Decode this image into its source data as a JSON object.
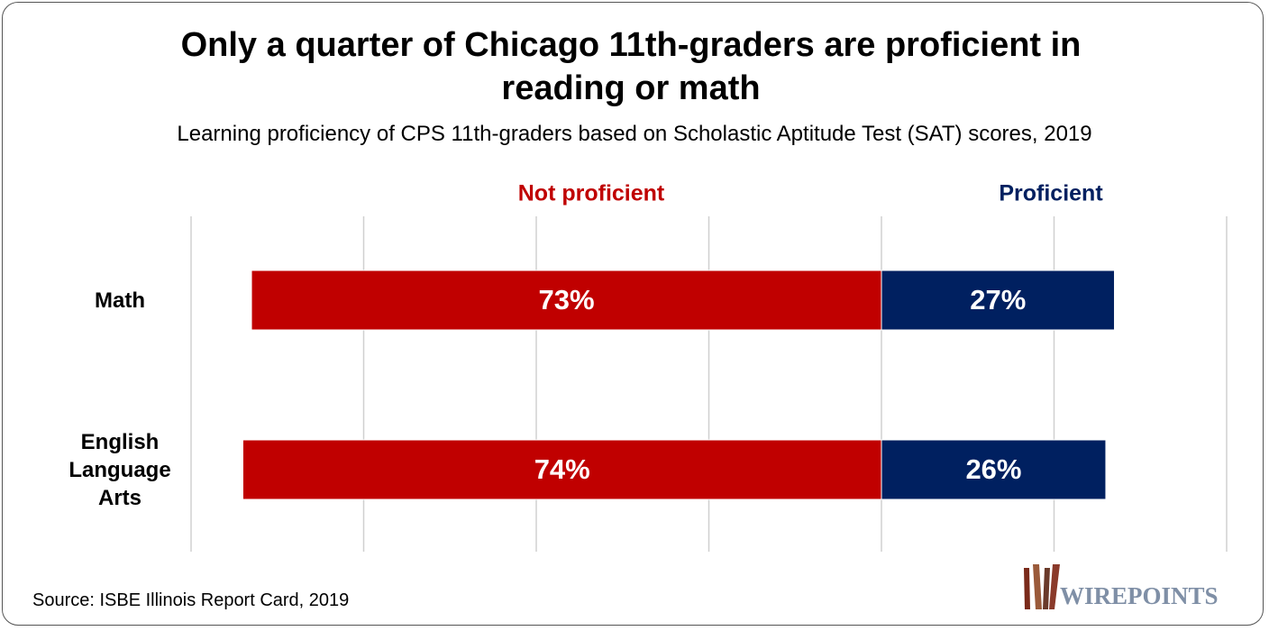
{
  "chart_data": {
    "type": "diverging-bar",
    "title": "Only a quarter of Chicago 11th-graders are proficient in reading or math",
    "subtitle": "Learning proficiency of CPS 11th-graders based on Scholastic Aptitude Test (SAT) scores, 2019",
    "categories": [
      "Math",
      "English Language Arts"
    ],
    "series": [
      {
        "name": "Not proficient",
        "color": "#c00000",
        "direction": "left",
        "values": [
          73,
          74
        ],
        "value_labels": [
          "73%",
          "74%"
        ]
      },
      {
        "name": "Proficient",
        "color": "#002060",
        "direction": "right",
        "values": [
          27,
          26
        ],
        "value_labels": [
          "27%",
          "26%"
        ]
      }
    ],
    "xlim": [
      -80,
      40
    ],
    "xticks": [
      -80,
      -60,
      -40,
      -20,
      0,
      20,
      40
    ],
    "grid": true,
    "source": "Source: ISBE Illinois Report Card, 2019",
    "logo": "WIREPOINTS"
  }
}
